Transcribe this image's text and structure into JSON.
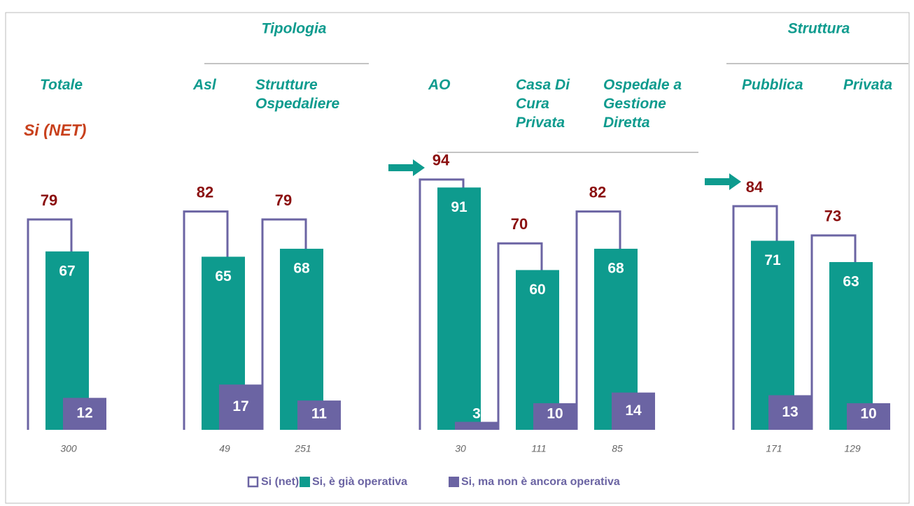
{
  "chart_data": {
    "type": "bar",
    "headers": [
      "Tipologia",
      "Struttura"
    ],
    "subtitle": "Si (NET)",
    "categories": [
      "Totale",
      "Asl",
      "Strutture Ospedaliere",
      "AO",
      "Casa Di Cura Privata",
      "Ospedale a Gestione Diretta",
      "Pubblica",
      "Privata"
    ],
    "base": [
      300,
      49,
      251,
      30,
      111,
      85,
      171,
      129
    ],
    "series": [
      {
        "name": "Si (net)",
        "color": "#6b64a3",
        "values": [
          79,
          82,
          79,
          94,
          70,
          82,
          84,
          73
        ]
      },
      {
        "name": "Si, è già operativa",
        "color": "#0e9b8e",
        "values": [
          67,
          65,
          68,
          91,
          60,
          68,
          71,
          63
        ]
      },
      {
        "name": "Si, ma non è ancora operativa",
        "color": "#6b64a3",
        "values": [
          12,
          17,
          11,
          3,
          10,
          14,
          13,
          10
        ]
      }
    ]
  }
}
